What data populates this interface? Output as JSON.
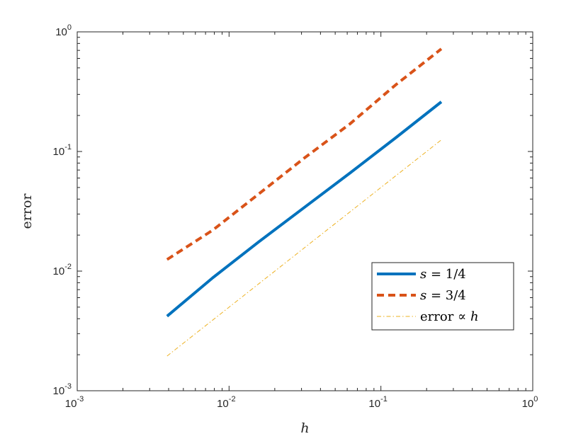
{
  "chart_data": {
    "type": "line",
    "xlabel": "h",
    "ylabel": "error",
    "xscale": "log",
    "yscale": "log",
    "xlim": [
      0.001,
      1
    ],
    "ylim": [
      0.001,
      1
    ],
    "grid": false,
    "legend_position": "bottom-right",
    "x_ticks": [
      {
        "base": "10",
        "exp": "-3",
        "value": 0.001
      },
      {
        "base": "10",
        "exp": "-2",
        "value": 0.01
      },
      {
        "base": "10",
        "exp": "-1",
        "value": 0.1
      },
      {
        "base": "10",
        "exp": "0",
        "value": 1
      }
    ],
    "y_ticks": [
      {
        "base": "10",
        "exp": "-3",
        "value": 0.001
      },
      {
        "base": "10",
        "exp": "-2",
        "value": 0.01
      },
      {
        "base": "10",
        "exp": "-1",
        "value": 0.1
      },
      {
        "base": "10",
        "exp": "0",
        "value": 1
      }
    ],
    "series": [
      {
        "name": "s = 1/4",
        "label_var": "s",
        "label_rest": " = 1/4",
        "color": "#0072BD",
        "style": "solid",
        "x": [
          0.00390625,
          0.0078125,
          0.015625,
          0.03125,
          0.0625,
          0.125,
          0.25
        ],
        "y": [
          0.0042,
          0.0088,
          0.0175,
          0.034,
          0.066,
          0.13,
          0.26
        ]
      },
      {
        "name": "s = 3/4",
        "label_var": "s",
        "label_rest": " = 3/4",
        "color": "#D95319",
        "style": "dashed",
        "x": [
          0.00390625,
          0.0078125,
          0.015625,
          0.03125,
          0.0625,
          0.125,
          0.25
        ],
        "y": [
          0.0125,
          0.022,
          0.044,
          0.088,
          0.17,
          0.36,
          0.72
        ]
      },
      {
        "name": "error ∝ h",
        "label_var": "",
        "label_rest": "error ∝ ",
        "label_tail": "h",
        "color": "#EDB120",
        "style": "dashdot",
        "x": [
          0.00390625,
          0.25
        ],
        "y": [
          0.00195,
          0.125
        ]
      }
    ]
  }
}
